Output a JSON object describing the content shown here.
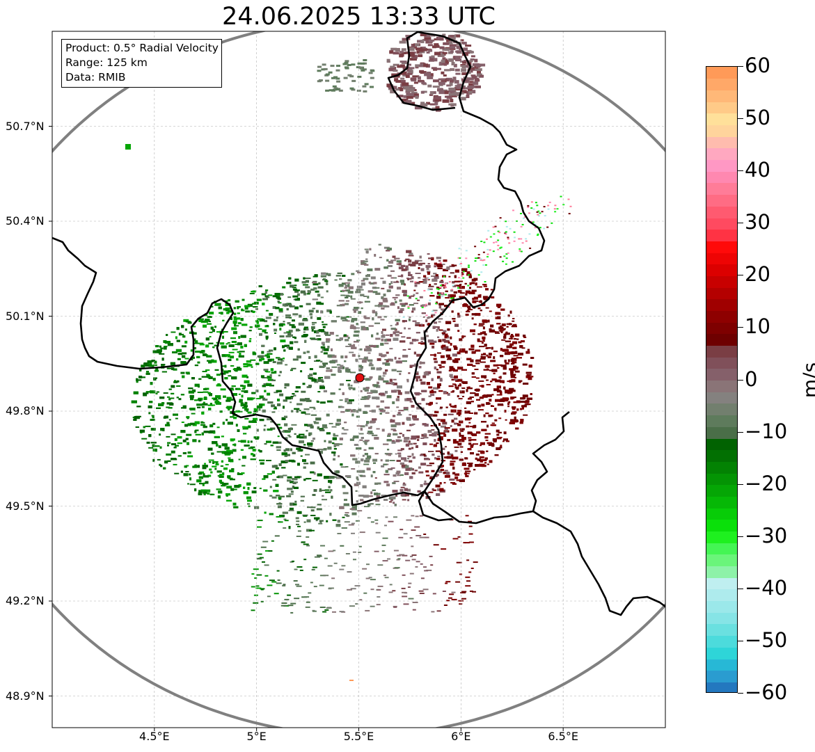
{
  "title": "24.06.2025 13:33 UTC",
  "info_box": {
    "product": "Product: 0.5° Radial Velocity",
    "range": "Range: 125 km",
    "data": "Data: RMIB"
  },
  "map": {
    "lon_range": [
      4.0,
      7.0
    ],
    "lat_range": [
      48.8,
      51.0
    ],
    "radar_site": {
      "lon": 5.505,
      "lat": 49.915
    },
    "range_ring_km": 125,
    "gridlines": true,
    "x_ticks": [
      {
        "value": 4.5,
        "label": "4.5°E"
      },
      {
        "value": 5.0,
        "label": "5°E"
      },
      {
        "value": 5.5,
        "label": "5.5°E"
      },
      {
        "value": 6.0,
        "label": "6°E"
      },
      {
        "value": 6.5,
        "label": "6.5°E"
      }
    ],
    "y_ticks": [
      {
        "value": 50.7,
        "label": "50.7°N"
      },
      {
        "value": 50.4,
        "label": "50.4°N"
      },
      {
        "value": 50.1,
        "label": "50.1°N"
      },
      {
        "value": 49.8,
        "label": "49.8°N"
      },
      {
        "value": 49.5,
        "label": "49.5°N"
      },
      {
        "value": 49.2,
        "label": "49.2°N"
      },
      {
        "value": 48.9,
        "label": "48.9°N"
      }
    ]
  },
  "colorbar": {
    "unit": "m/s",
    "min": -60,
    "max": 60,
    "ticks": [
      {
        "value": 60,
        "label": "60"
      },
      {
        "value": 50,
        "label": "50"
      },
      {
        "value": 40,
        "label": "40"
      },
      {
        "value": 30,
        "label": "30"
      },
      {
        "value": 20,
        "label": "20"
      },
      {
        "value": 10,
        "label": "10"
      },
      {
        "value": 0,
        "label": "0"
      },
      {
        "value": -10,
        "label": "−10"
      },
      {
        "value": -20,
        "label": "−20"
      },
      {
        "value": -30,
        "label": "−30"
      },
      {
        "value": -40,
        "label": "−40"
      },
      {
        "value": -50,
        "label": "−50"
      },
      {
        "value": -60,
        "label": "−60"
      }
    ],
    "colors": [
      "#2378bf",
      "#2a9cd0",
      "#27b8d6",
      "#2ed5d8",
      "#4cdbdc",
      "#6ae0e0",
      "#86e4e6",
      "#9be8ea",
      "#aeebed",
      "#bfeff0",
      "#8df2a8",
      "#6af57a",
      "#44f554",
      "#1ef01f",
      "#0ae00a",
      "#08cc08",
      "#06b806",
      "#05a605",
      "#049404",
      "#038203",
      "#027002",
      "#016201",
      "#4a6e48",
      "#5e7b5c",
      "#727f6e",
      "#84817f",
      "#8a7477",
      "#85606a",
      "#80505a",
      "#7a3e44",
      "#6e0000",
      "#7e0000",
      "#8e0000",
      "#a00000",
      "#b40000",
      "#c80000",
      "#dc0000",
      "#ee0404",
      "#ff0a0a",
      "#ff3344",
      "#ff4a60",
      "#ff5a70",
      "#ff6c84",
      "#ff7c98",
      "#ff88b0",
      "#ff98c4",
      "#ffa8c0",
      "#ffbcae",
      "#ffd49c",
      "#ffe09a",
      "#ffca88",
      "#ffb878",
      "#ffa868",
      "#ff9a58"
    ]
  }
}
